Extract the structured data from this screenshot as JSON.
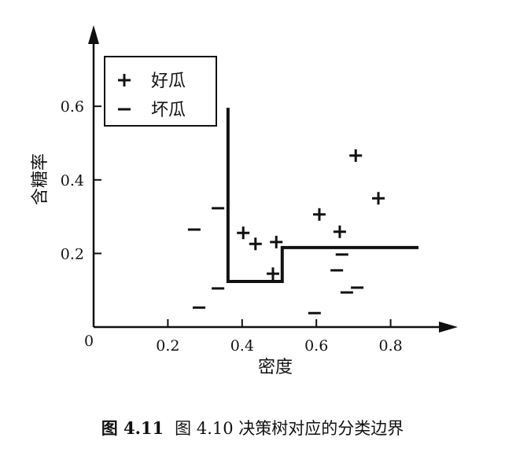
{
  "chart_data": {
    "type": "scatter",
    "xlabel": "密度",
    "ylabel": "含糖率",
    "xlim": [
      0,
      0.9
    ],
    "ylim": [
      0,
      0.75
    ],
    "origin_label": "0",
    "x_ticks": [
      {
        "v": 0.2,
        "label": "0.2"
      },
      {
        "v": 0.4,
        "label": "0.4"
      },
      {
        "v": 0.6,
        "label": "0.6"
      },
      {
        "v": 0.8,
        "label": "0.8"
      }
    ],
    "y_ticks": [
      {
        "v": 0.2,
        "label": "0.2"
      },
      {
        "v": 0.4,
        "label": "0.4"
      },
      {
        "v": 0.6,
        "label": "0.6"
      }
    ],
    "grid": false,
    "legend_position": "top-left",
    "series": [
      {
        "name": "好瓜",
        "marker": "plus",
        "points": [
          [
            0.706,
            0.466
          ],
          [
            0.767,
            0.35
          ],
          [
            0.608,
            0.306
          ],
          [
            0.663,
            0.259
          ],
          [
            0.403,
            0.256
          ],
          [
            0.436,
            0.226
          ],
          [
            0.492,
            0.231
          ],
          [
            0.483,
            0.145
          ]
        ]
      },
      {
        "name": "坏瓜",
        "marker": "minus",
        "points": [
          [
            0.271,
            0.265
          ],
          [
            0.335,
            0.323
          ],
          [
            0.284,
            0.053
          ],
          [
            0.335,
            0.105
          ],
          [
            0.595,
            0.038
          ],
          [
            0.669,
            0.197
          ],
          [
            0.655,
            0.154
          ],
          [
            0.682,
            0.094
          ],
          [
            0.71,
            0.107
          ]
        ]
      }
    ],
    "boundary": [
      [
        0.362,
        0.596
      ],
      [
        0.362,
        0.124
      ],
      [
        0.508,
        0.124
      ],
      [
        0.508,
        0.216
      ],
      [
        0.875,
        0.216
      ]
    ],
    "color": "#111111"
  },
  "caption": {
    "number": "图 4.11",
    "text": "图 4.10 决策树对应的分类边界"
  }
}
